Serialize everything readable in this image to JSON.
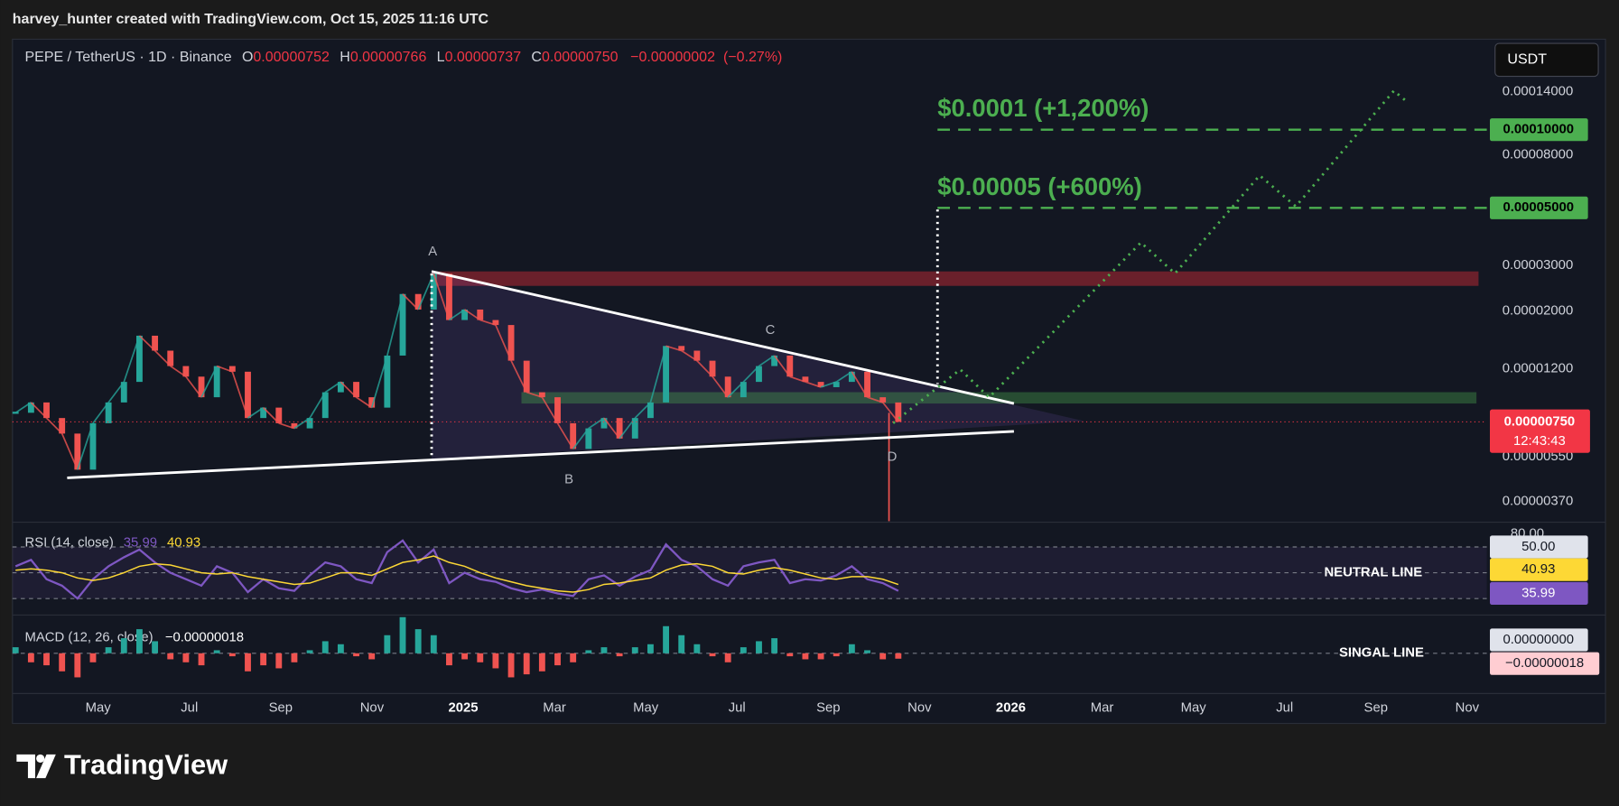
{
  "header": {
    "credit": "harvey_hunter created with TradingView.com, Oct 15, 2025 11:16 UTC"
  },
  "footer": {
    "brand": "TradingView"
  },
  "chart_data": [
    {
      "type": "candlestick",
      "title": "PEPE / TetherUS · 1D · Binance",
      "ohlc": [
        {
          "name": "O",
          "value": 7.52e-06,
          "label": "0.00000752"
        },
        {
          "name": "H",
          "value": 7.66e-06,
          "label": "0.00000766"
        },
        {
          "name": "L",
          "value": 7.37e-06,
          "label": "0.00000737"
        },
        {
          "name": "C",
          "value": 7.5e-06,
          "label": "0.00000750"
        }
      ],
      "change": {
        "value": -2e-08,
        "label": "−0.00000002"
      },
      "change_pct": {
        "value": -0.27,
        "label": "(−0.27%)"
      },
      "currency": "USDT",
      "log_scale": true,
      "ylim": [
        3.11e-06,
        0.000223
      ],
      "yticks": [
        {
          "value": 0.00014,
          "label": "0.00014000"
        },
        {
          "value": 8e-05,
          "label": "0.00008000"
        },
        {
          "value": 3e-05,
          "label": "0.00003000"
        },
        {
          "value": 2e-05,
          "label": "0.00002000"
        },
        {
          "value": 1.2e-05,
          "label": "0.00001200"
        },
        {
          "value": 5.5e-06,
          "label": "0.00000550"
        },
        {
          "value": 3.7e-06,
          "label": "0.00000370"
        }
      ],
      "xtick_labels": [
        "May",
        "Jul",
        "Sep",
        "Nov",
        "2025",
        "Mar",
        "May",
        "Jul",
        "Sep",
        "Nov",
        "2026",
        "Mar",
        "May",
        "Jul",
        "Sep",
        "Nov"
      ],
      "up_color": "#26a69a",
      "down_color": "#ef5350",
      "values": [
        8.13e-06,
        8.91e-06,
        7.76e-06,
        6.76e-06,
        4.91e-06,
        7.41e-06,
        8.91e-06,
        1.069e-05,
        1.61e-05,
        1.41e-05,
        1.23e-05,
        1.12e-05,
        9.33e-06,
        1.23e-05,
        1.17e-05,
        7.76e-06,
        8.51e-06,
        7.41e-06,
        7.08e-06,
        7.76e-06,
        9.75e-06,
        1.069e-05,
        9.33e-06,
        8.51e-06,
        1.35e-05,
        2.33e-05,
        2.03e-05,
        2.79e-05,
        1.85e-05,
        2.03e-05,
        1.85e-05,
        1.77e-05,
        1.29e-05,
        9.75e-06,
        9.33e-06,
        7.41e-06,
        5.9e-06,
        7.08e-06,
        7.76e-06,
        6.47e-06,
        7.76e-06,
        8.91e-06,
        1.47e-05,
        1.41e-05,
        1.29e-05,
        1.12e-05,
        9.33e-06,
        1.069e-05,
        1.23e-05,
        1.35e-05,
        1.12e-05,
        1.069e-05,
        1.02e-05,
        1.069e-05,
        1.17e-05,
        9.33e-06,
        8.91e-06,
        7.5e-06
      ],
      "price_label": {
        "value": 7.5e-06,
        "label": "0.00000750"
      },
      "countdown": "12:43:43",
      "targets": [
        {
          "value": 0.0001,
          "label": "0.00010000",
          "annotation": "$0.0001 (+1,200%)"
        },
        {
          "value": 5e-05,
          "label": "0.00005000",
          "annotation": "$0.00005 (+600%)"
        }
      ],
      "target_color": "#4caf50",
      "points": [
        "A",
        "B",
        "C",
        "D"
      ]
    },
    {
      "type": "line",
      "title": "RSI (14, close)",
      "ylim": [
        20.4,
        87.6
      ],
      "yticks": [
        {
          "value": 80,
          "label": "80.00"
        }
      ],
      "levels": [
        70,
        30
      ],
      "neutral": {
        "value": 50,
        "label": "50.00",
        "annotation": "NEUTRAL LINE"
      },
      "series": [
        {
          "color": "#7e57c2",
          "values": [
            55,
            60,
            45,
            40,
            30,
            45,
            55,
            62,
            68,
            58,
            50,
            45,
            40,
            55,
            50,
            35,
            45,
            38,
            36,
            48,
            58,
            55,
            45,
            42,
            66,
            75,
            58,
            68,
            42,
            50,
            45,
            43,
            38,
            35,
            37,
            34,
            32,
            45,
            48,
            40,
            47,
            52,
            72,
            60,
            55,
            45,
            40,
            55,
            58,
            60,
            42,
            45,
            44,
            48,
            55,
            45,
            42,
            35.99
          ]
        },
        {
          "color": "#fdd835",
          "values": [
            52,
            53,
            52,
            50,
            46,
            44,
            46,
            50,
            55,
            57,
            56,
            53,
            50,
            49,
            50,
            47,
            45,
            43,
            41,
            42,
            46,
            50,
            50,
            48,
            53,
            58,
            60,
            63,
            58,
            55,
            50,
            46,
            43,
            40,
            38,
            36,
            35,
            37,
            41,
            42,
            44,
            46,
            52,
            56,
            57,
            55,
            50,
            49,
            52,
            54,
            52,
            49,
            46,
            45,
            47,
            47,
            45,
            40.93
          ]
        }
      ]
    },
    {
      "type": "bar",
      "title": "MACD (12, 26, close)",
      "macd": {
        "value": -1.8e-07,
        "label": "−0.00000018"
      },
      "zero": {
        "value": 0,
        "label": "0.00000000",
        "annotation": "SINGAL LINE"
      },
      "ylim": [
        -1.2e-06,
        1.2e-06
      ],
      "up_color": "#26a69a",
      "down_color": "#ef5350",
      "values": [
        2e-07,
        -3e-07,
        -4e-07,
        -6e-07,
        -8e-07,
        -3e-07,
        2e-07,
        5e-07,
        8e-07,
        4e-07,
        -2e-07,
        -3e-07,
        -4e-07,
        1e-07,
        -1e-07,
        -6e-07,
        -4e-07,
        -5e-07,
        -3e-07,
        1e-07,
        4e-07,
        3e-07,
        -1e-07,
        -2e-07,
        6e-07,
        1.2e-06,
        8e-07,
        6e-07,
        -4e-07,
        -2e-07,
        -3e-07,
        -5e-07,
        -8e-07,
        -7e-07,
        -6e-07,
        -4e-07,
        -3e-07,
        1e-07,
        2e-07,
        -1e-07,
        2e-07,
        3e-07,
        9e-07,
        6e-07,
        3e-07,
        -1e-07,
        -3e-07,
        2e-07,
        4e-07,
        5e-07,
        -1e-07,
        -2e-07,
        -2e-07,
        -1e-07,
        3e-07,
        1e-07,
        -2e-07,
        -1.8e-07
      ]
    }
  ]
}
